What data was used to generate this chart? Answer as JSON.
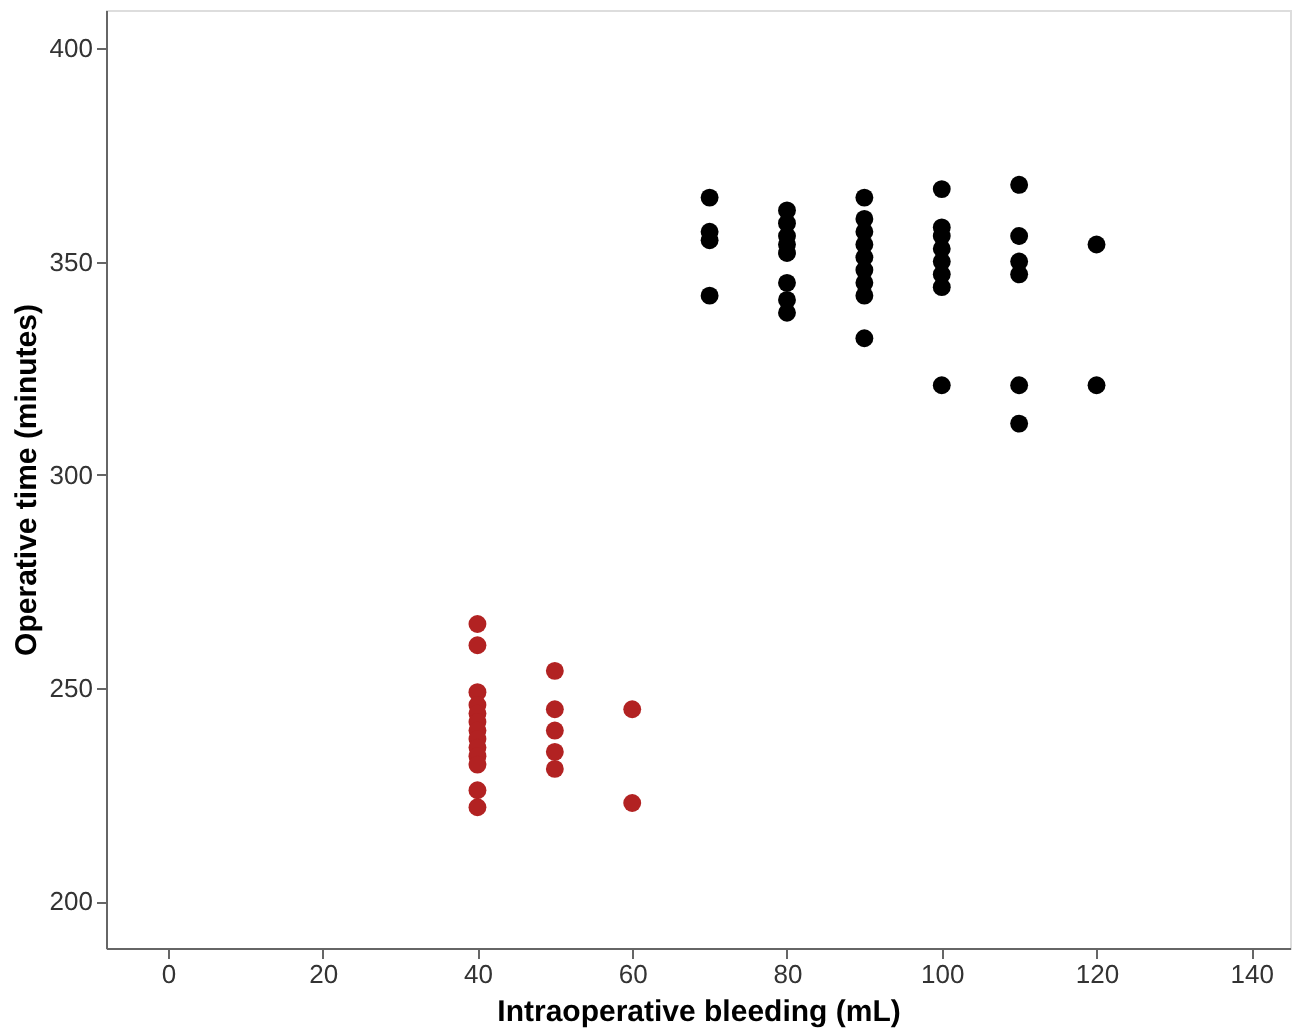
{
  "chart_data": {
    "type": "scatter",
    "xlabel": "Intraoperative bleeding (mL)",
    "ylabel": "Operative time (minutes)",
    "xlim": [
      -8,
      145
    ],
    "ylim": [
      189,
      409
    ],
    "xticks": [
      0,
      20,
      40,
      60,
      80,
      100,
      120,
      140
    ],
    "yticks": [
      200,
      250,
      300,
      350,
      400
    ],
    "grid": false,
    "legend": false,
    "marker": "circle",
    "series": [
      {
        "color": "#000000",
        "x": [
          70,
          70,
          70,
          70,
          80,
          80,
          80,
          80,
          80,
          80,
          80,
          80,
          90,
          90,
          90,
          90,
          90,
          90,
          90,
          90,
          90,
          100,
          100,
          100,
          100,
          100,
          100,
          100,
          100,
          110,
          110,
          110,
          110,
          110,
          110,
          120,
          120
        ],
        "values": [
          365,
          357,
          355,
          342,
          362,
          359,
          356,
          354,
          352,
          345,
          341,
          338,
          365,
          360,
          357,
          354,
          351,
          348,
          345,
          342,
          332,
          367,
          358,
          356,
          353,
          350,
          347,
          344,
          321,
          368,
          356,
          350,
          347,
          321,
          312,
          354,
          321
        ]
      },
      {
        "color": "#b22222",
        "x": [
          40,
          40,
          40,
          40,
          40,
          40,
          40,
          40,
          40,
          40,
          40,
          40,
          40,
          50,
          50,
          50,
          50,
          50,
          60,
          60
        ],
        "values": [
          265,
          260,
          249,
          246,
          244,
          242,
          240,
          238,
          236,
          234,
          232,
          226,
          222,
          254,
          245,
          240,
          235,
          231,
          245,
          223
        ]
      }
    ]
  }
}
